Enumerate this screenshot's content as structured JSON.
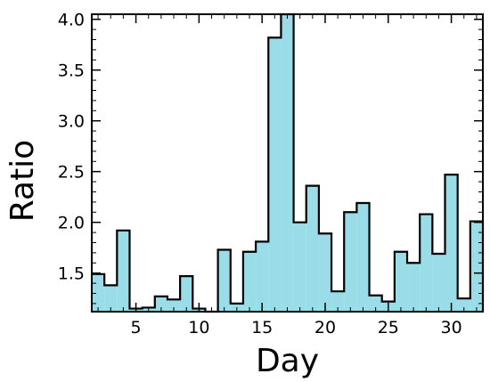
{
  "chart_data": {
    "type": "bar",
    "style": "step-histogram",
    "xlabel": "Day",
    "ylabel": "Ratio",
    "xlim": [
      1.5,
      32.5
    ],
    "ylim": [
      1.12,
      4.05
    ],
    "x_ticks": [
      5,
      10,
      15,
      20,
      25,
      30
    ],
    "y_ticks": [
      1.5,
      2.0,
      2.5,
      3.0,
      3.5,
      4.0
    ],
    "y_tick_labels": [
      "1.5",
      "2.0",
      "2.5",
      "3.0",
      "3.5",
      "4.0"
    ],
    "fill_color": "#9adde8",
    "edge_color": "#000000",
    "grid": false,
    "days": [
      2,
      3,
      4,
      5,
      6,
      7,
      8,
      9,
      10,
      11,
      12,
      13,
      14,
      15,
      16,
      17,
      18,
      19,
      20,
      21,
      22,
      23,
      24,
      25,
      26,
      27,
      28,
      29,
      30,
      31,
      32
    ],
    "values": [
      1.49,
      1.38,
      1.92,
      1.15,
      1.16,
      1.27,
      1.24,
      1.47,
      1.15,
      1.12,
      1.73,
      1.2,
      1.71,
      1.81,
      3.82,
      4.05,
      2.0,
      2.36,
      1.89,
      1.32,
      2.1,
      2.19,
      1.28,
      1.22,
      1.71,
      1.6,
      2.08,
      1.69,
      2.47,
      1.25,
      2.01
    ]
  }
}
